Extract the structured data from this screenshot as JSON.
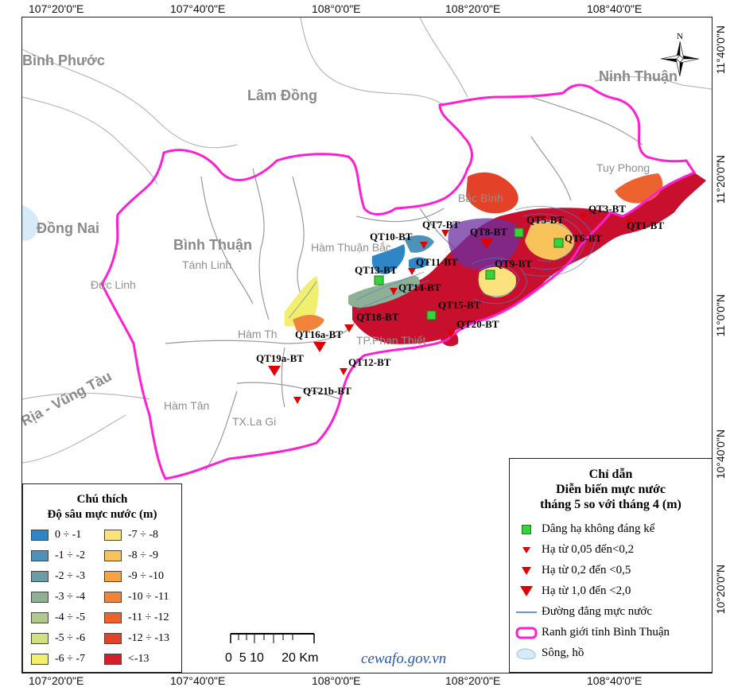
{
  "coords": {
    "top": [
      "107°20'0\"E",
      "107°40'0\"E",
      "108°0'0\"E",
      "108°20'0\"E",
      "108°40'0\"E"
    ],
    "bottom": [
      "107°20'0\"E",
      "107°40'0\"E",
      "108°0'0\"E",
      "108°20'0\"E",
      "108°40'0\"E"
    ],
    "right": [
      "11°40'0\"N",
      "11°20'0\"N",
      "11°0'0\"N",
      "10°40'0\"N",
      "10°20'0\"N"
    ]
  },
  "regions": {
    "binh_phuoc": "Bình Phước",
    "lam_dong": "Lâm Đồng",
    "ninh_thuan": "Ninh Thuận",
    "dong_nai": "Đồng Nai",
    "binh_thuan": "Bình Thuận",
    "ria_vung_tau": "Rịa - Vũng Tàu"
  },
  "districts": {
    "tuy_phong": "Tuy Phong",
    "bac_binh": "Bắc Bình",
    "ham_thuan_bac": "Hàm Thuận Bắc",
    "tanh_linh": "Tánh Linh",
    "duc_linh": "Đức Linh",
    "ham_thuan_nam": "Hàm Th",
    "tp_phan_thiet": "TP.Phan Thiết",
    "ham_tan": "Hàm Tân",
    "tx_la_gi": "TX.La Gi"
  },
  "stations": {
    "qt1": "QT1-BT",
    "qt3": "QT3-BT",
    "qt5": "QT5-BT",
    "qt6": "QT6-BT",
    "qt7": "QT7-BT",
    "qt8": "QT8-BT",
    "qt9": "QT9-BT",
    "qt10": "QT10-BT",
    "qt11": "QT11-BT",
    "qt12": "QT12-BT",
    "qt13": "QT13-BT",
    "qt14": "QT14-BT",
    "qt15": "QT15-BT",
    "qt16a": "QT16a-BT",
    "qt18": "QT18-BT",
    "qt19a": "QT19a-BT",
    "qt20": "QT20-BT",
    "qt21b": "QT21b-BT"
  },
  "depth_legend": {
    "title1": "Chú thích",
    "title2": "Độ sâu mực nước (m)",
    "items": [
      {
        "label": "0 ÷ -1",
        "color": "#2f86c6"
      },
      {
        "label": "-1 ÷ -2",
        "color": "#4d93b9"
      },
      {
        "label": "-2 ÷ -3",
        "color": "#6a9ea7"
      },
      {
        "label": "-3 ÷ -4",
        "color": "#8eb196"
      },
      {
        "label": "-4 ÷ -5",
        "color": "#b0c98c"
      },
      {
        "label": "-5 ÷ -6",
        "color": "#d4e07f"
      },
      {
        "label": "-6 ÷ -7",
        "color": "#f2ef6c"
      },
      {
        "label": "-7 ÷ -8",
        "color": "#fbe27d"
      },
      {
        "label": "-8 ÷ -9",
        "color": "#f9c25b"
      },
      {
        "label": "-9 ÷ -10",
        "color": "#f5a344"
      },
      {
        "label": "-10 ÷ -11",
        "color": "#f1843a"
      },
      {
        "label": "-11 ÷ -12",
        "color": "#ec6330"
      },
      {
        "label": "-12 ÷ -13",
        "color": "#e44228"
      },
      {
        "label": "<-13",
        "color": "#d5202a"
      }
    ]
  },
  "main_legend": {
    "title1": "Chỉ dẫn",
    "title2": "Diễn biến mực nước",
    "title3": "tháng 5 so với tháng 4 (m)",
    "items": [
      {
        "label": "Dâng hạ không đáng kể",
        "icon": "green-square"
      },
      {
        "label": "Hạ từ 0,05 đến<0,2",
        "icon": "small-red-triangle"
      },
      {
        "label": "Hạ từ 0,2 đến <0,5",
        "icon": "medium-red-triangle"
      },
      {
        "label": "Hạ từ 1,0 đến <2,0",
        "icon": "large-red-triangle"
      },
      {
        "label": "Đường đẳng mực nước",
        "icon": "blue-line"
      },
      {
        "label": "Ranh giới tỉnh Bình Thuận",
        "icon": "magenta-boundary"
      },
      {
        "label": "Sông, hồ",
        "icon": "lake-fill"
      }
    ]
  },
  "scale": {
    "label": "0  5 10     20 Km"
  },
  "watermark": "cewafo.gov.vn",
  "north_arrow": "N",
  "colors": {
    "boundary": "#ff1fd2",
    "marker_green": "#38d23a",
    "marker_red": "#e00000",
    "water": "#d6eaf7",
    "district_lines": "#9a9a9a"
  }
}
